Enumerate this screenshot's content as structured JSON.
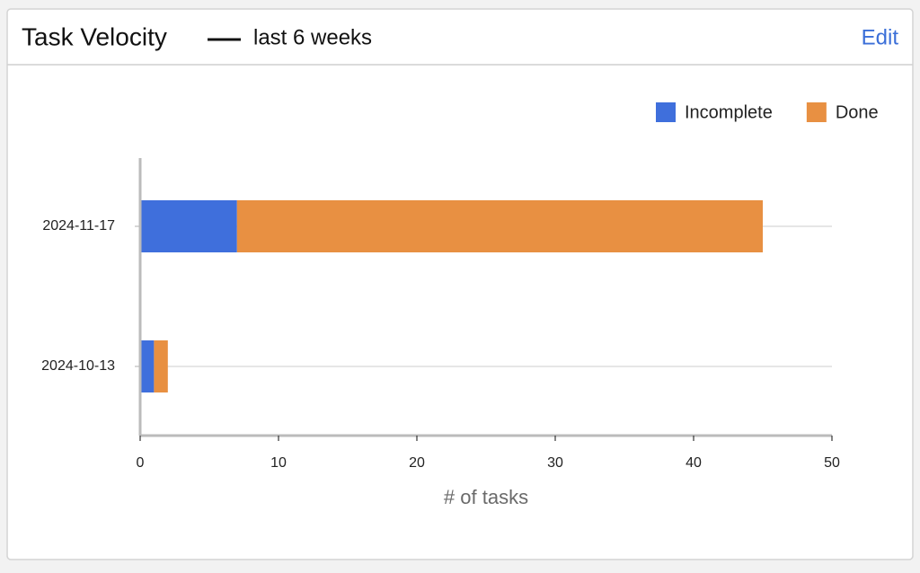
{
  "header": {
    "title": "Task Velocity",
    "subtitle": "last 6 weeks",
    "action": "Edit"
  },
  "chart_data": {
    "type": "stacked-hbar",
    "categories": [
      "2024-11-17",
      "2024-10-13"
    ],
    "series": [
      {
        "name": "Incomplete",
        "color": "#3f6fdc",
        "values": [
          7,
          1
        ]
      },
      {
        "name": "Done",
        "color": "#e89042",
        "values": [
          38,
          1
        ]
      }
    ],
    "xlim": [
      0,
      50
    ],
    "xticks": [
      0,
      10,
      20,
      30,
      40,
      50
    ],
    "xlabel": "# of tasks",
    "grid": true
  }
}
